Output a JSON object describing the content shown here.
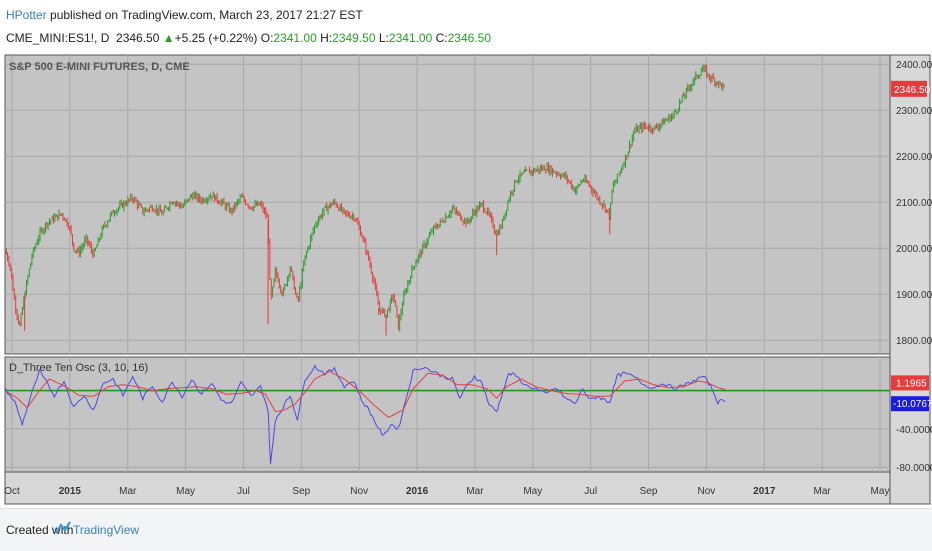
{
  "header": {
    "user": "HPotter",
    "published": "published on TradingView.com, March 23, 2017 21:27 EST"
  },
  "ticker": {
    "symbol": "CME_MINI:ES1!, D",
    "price": "2346.50",
    "change": "+5.25 (+0.22%)",
    "o_label": "O:",
    "o": "2341.00",
    "h_label": "H:",
    "h": "2349.50",
    "l_label": "L:",
    "l": "2341.00",
    "c_label": "C:",
    "c": "2346.50"
  },
  "footer": {
    "created": "Created with",
    "brand": "TradingView"
  },
  "colors": {
    "up": "#2e9a2e",
    "down": "#e8393c",
    "panel_bg": "#c4c4c4",
    "osc_fast": "#4a4ae0",
    "osc_slow": "#e04040",
    "zero_line": "#1a9c1a",
    "price_tag": "#e8393c",
    "osc_tag1": "#e8393c",
    "osc_tag2": "#1a1ae0"
  },
  "chart_data": [
    {
      "type": "candlestick",
      "title": "S&P 500 E-MINI FUTURES, D, CME",
      "ylim": [
        1770,
        2420
      ],
      "yticks": [
        1800,
        1900,
        2000,
        2100,
        2200,
        2300,
        2400
      ],
      "ytick_labels": [
        "1800.00",
        "1900.00",
        "2000.00",
        "2100.00",
        "2200.00",
        "2300.00",
        "2400.00"
      ],
      "last_price_label": "2346.50",
      "x_labels": [
        "Oct",
        "2015",
        "Mar",
        "May",
        "Jul",
        "Sep",
        "Nov",
        "2016",
        "Mar",
        "May",
        "Jul",
        "Sep",
        "Nov",
        "2017",
        "Mar",
        "May"
      ],
      "x_bold": [
        "2015",
        "2016",
        "2017"
      ],
      "grid": true,
      "close_path": [
        {
          "x": 0,
          "y": 1995
        },
        {
          "x": 2,
          "y": 1965
        },
        {
          "x": 4,
          "y": 1880
        },
        {
          "x": 6,
          "y": 1830
        },
        {
          "x": 8,
          "y": 1900
        },
        {
          "x": 11,
          "y": 1985
        },
        {
          "x": 14,
          "y": 2030
        },
        {
          "x": 17,
          "y": 2055
        },
        {
          "x": 20,
          "y": 2065
        },
        {
          "x": 23,
          "y": 2075
        },
        {
          "x": 26,
          "y": 2050
        },
        {
          "x": 28,
          "y": 2000
        },
        {
          "x": 30,
          "y": 1990
        },
        {
          "x": 33,
          "y": 2020
        },
        {
          "x": 36,
          "y": 1985
        },
        {
          "x": 40,
          "y": 2045
        },
        {
          "x": 44,
          "y": 2080
        },
        {
          "x": 48,
          "y": 2095
        },
        {
          "x": 52,
          "y": 2110
        },
        {
          "x": 56,
          "y": 2080
        },
        {
          "x": 60,
          "y": 2090
        },
        {
          "x": 64,
          "y": 2075
        },
        {
          "x": 68,
          "y": 2105
        },
        {
          "x": 72,
          "y": 2090
        },
        {
          "x": 76,
          "y": 2115
        },
        {
          "x": 80,
          "y": 2105
        },
        {
          "x": 84,
          "y": 2115
        },
        {
          "x": 88,
          "y": 2100
        },
        {
          "x": 92,
          "y": 2080
        },
        {
          "x": 96,
          "y": 2110
        },
        {
          "x": 100,
          "y": 2090
        },
        {
          "x": 104,
          "y": 2095
        },
        {
          "x": 107,
          "y": 2060
        },
        {
          "x": 108,
          "y": 1880
        },
        {
          "x": 110,
          "y": 1950
        },
        {
          "x": 113,
          "y": 1900
        },
        {
          "x": 116,
          "y": 1960
        },
        {
          "x": 119,
          "y": 1880
        },
        {
          "x": 122,
          "y": 1980
        },
        {
          "x": 126,
          "y": 2050
        },
        {
          "x": 130,
          "y": 2085
        },
        {
          "x": 134,
          "y": 2100
        },
        {
          "x": 138,
          "y": 2075
        },
        {
          "x": 142,
          "y": 2070
        },
        {
          "x": 145,
          "y": 2030
        },
        {
          "x": 147,
          "y": 1995
        },
        {
          "x": 150,
          "y": 1930
        },
        {
          "x": 152,
          "y": 1870
        },
        {
          "x": 155,
          "y": 1855
        },
        {
          "x": 158,
          "y": 1900
        },
        {
          "x": 160,
          "y": 1830
        },
        {
          "x": 162,
          "y": 1890
        },
        {
          "x": 166,
          "y": 1960
        },
        {
          "x": 170,
          "y": 2000
        },
        {
          "x": 174,
          "y": 2040
        },
        {
          "x": 178,
          "y": 2060
        },
        {
          "x": 182,
          "y": 2085
        },
        {
          "x": 185,
          "y": 2070
        },
        {
          "x": 188,
          "y": 2055
        },
        {
          "x": 191,
          "y": 2080
        },
        {
          "x": 194,
          "y": 2095
        },
        {
          "x": 197,
          "y": 2070
        },
        {
          "x": 200,
          "y": 2030
        },
        {
          "x": 202,
          "y": 2050
        },
        {
          "x": 205,
          "y": 2110
        },
        {
          "x": 208,
          "y": 2150
        },
        {
          "x": 212,
          "y": 2165
        },
        {
          "x": 216,
          "y": 2170
        },
        {
          "x": 220,
          "y": 2175
        },
        {
          "x": 224,
          "y": 2165
        },
        {
          "x": 228,
          "y": 2155
        },
        {
          "x": 232,
          "y": 2125
        },
        {
          "x": 235,
          "y": 2150
        },
        {
          "x": 238,
          "y": 2135
        },
        {
          "x": 241,
          "y": 2110
        },
        {
          "x": 244,
          "y": 2090
        },
        {
          "x": 246,
          "y": 2070
        },
        {
          "x": 247,
          "y": 2130
        },
        {
          "x": 250,
          "y": 2165
        },
        {
          "x": 253,
          "y": 2205
        },
        {
          "x": 256,
          "y": 2255
        },
        {
          "x": 260,
          "y": 2265
        },
        {
          "x": 264,
          "y": 2260
        },
        {
          "x": 268,
          "y": 2275
        },
        {
          "x": 272,
          "y": 2290
        },
        {
          "x": 276,
          "y": 2330
        },
        {
          "x": 280,
          "y": 2365
        },
        {
          "x": 284,
          "y": 2390
        },
        {
          "x": 286,
          "y": 2375
        },
        {
          "x": 290,
          "y": 2360
        },
        {
          "x": 293,
          "y": 2346
        }
      ],
      "spikes": [
        {
          "x": 8,
          "low": 1820
        },
        {
          "x": 107,
          "low": 1835
        },
        {
          "x": 155,
          "low": 1810
        },
        {
          "x": 200,
          "low": 1985
        },
        {
          "x": 246,
          "low": 2030
        },
        {
          "x": 152,
          "low": 1855
        }
      ]
    },
    {
      "type": "line",
      "title": "D_Three Ten Osc (3, 10, 16)",
      "ylim": [
        -85,
        35
      ],
      "yticks": [
        -40,
        -80
      ],
      "ytick_labels": [
        "-40.0000",
        "-80.0000"
      ],
      "value_labels": [
        "1.1965",
        "-10.0767"
      ],
      "series": [
        {
          "role": "fast",
          "points": [
            {
              "x": 0,
              "y": 2
            },
            {
              "x": 4,
              "y": -12
            },
            {
              "x": 7,
              "y": -35
            },
            {
              "x": 10,
              "y": -10
            },
            {
              "x": 14,
              "y": 20
            },
            {
              "x": 17,
              "y": 8
            },
            {
              "x": 20,
              "y": -5
            },
            {
              "x": 24,
              "y": 10
            },
            {
              "x": 28,
              "y": -18
            },
            {
              "x": 32,
              "y": -5
            },
            {
              "x": 36,
              "y": -20
            },
            {
              "x": 40,
              "y": 8
            },
            {
              "x": 44,
              "y": 12
            },
            {
              "x": 48,
              "y": -5
            },
            {
              "x": 52,
              "y": 15
            },
            {
              "x": 56,
              "y": -8
            },
            {
              "x": 60,
              "y": 5
            },
            {
              "x": 64,
              "y": -12
            },
            {
              "x": 68,
              "y": 10
            },
            {
              "x": 72,
              "y": -6
            },
            {
              "x": 76,
              "y": 12
            },
            {
              "x": 80,
              "y": -4
            },
            {
              "x": 84,
              "y": 8
            },
            {
              "x": 88,
              "y": -10
            },
            {
              "x": 92,
              "y": -14
            },
            {
              "x": 96,
              "y": 8
            },
            {
              "x": 100,
              "y": -6
            },
            {
              "x": 104,
              "y": 4
            },
            {
              "x": 107,
              "y": -20
            },
            {
              "x": 108,
              "y": -78
            },
            {
              "x": 110,
              "y": -30
            },
            {
              "x": 113,
              "y": -18
            },
            {
              "x": 116,
              "y": -5
            },
            {
              "x": 119,
              "y": -30
            },
            {
              "x": 122,
              "y": 12
            },
            {
              "x": 126,
              "y": 25
            },
            {
              "x": 130,
              "y": 18
            },
            {
              "x": 134,
              "y": 22
            },
            {
              "x": 138,
              "y": 5
            },
            {
              "x": 142,
              "y": 10
            },
            {
              "x": 145,
              "y": -10
            },
            {
              "x": 148,
              "y": -20
            },
            {
              "x": 151,
              "y": -35
            },
            {
              "x": 154,
              "y": -48
            },
            {
              "x": 157,
              "y": -35
            },
            {
              "x": 160,
              "y": -40
            },
            {
              "x": 163,
              "y": -10
            },
            {
              "x": 166,
              "y": 20
            },
            {
              "x": 170,
              "y": 25
            },
            {
              "x": 174,
              "y": 20
            },
            {
              "x": 178,
              "y": 15
            },
            {
              "x": 182,
              "y": 12
            },
            {
              "x": 185,
              "y": -8
            },
            {
              "x": 188,
              "y": 5
            },
            {
              "x": 191,
              "y": 15
            },
            {
              "x": 194,
              "y": 8
            },
            {
              "x": 197,
              "y": -15
            },
            {
              "x": 200,
              "y": -22
            },
            {
              "x": 202,
              "y": -5
            },
            {
              "x": 205,
              "y": 18
            },
            {
              "x": 208,
              "y": 15
            },
            {
              "x": 212,
              "y": 5
            },
            {
              "x": 216,
              "y": 2
            },
            {
              "x": 220,
              "y": -4
            },
            {
              "x": 224,
              "y": 3
            },
            {
              "x": 228,
              "y": -8
            },
            {
              "x": 232,
              "y": -14
            },
            {
              "x": 235,
              "y": 2
            },
            {
              "x": 238,
              "y": -10
            },
            {
              "x": 241,
              "y": -6
            },
            {
              "x": 244,
              "y": -10
            },
            {
              "x": 246,
              "y": -12
            },
            {
              "x": 249,
              "y": 15
            },
            {
              "x": 252,
              "y": 18
            },
            {
              "x": 256,
              "y": 14
            },
            {
              "x": 260,
              "y": 6
            },
            {
              "x": 264,
              "y": 3
            },
            {
              "x": 268,
              "y": 8
            },
            {
              "x": 272,
              "y": 2
            },
            {
              "x": 276,
              "y": 5
            },
            {
              "x": 280,
              "y": 10
            },
            {
              "x": 284,
              "y": 15
            },
            {
              "x": 287,
              "y": 5
            },
            {
              "x": 290,
              "y": -12
            },
            {
              "x": 293,
              "y": -10
            }
          ]
        },
        {
          "role": "slow",
          "points": [
            {
              "x": 0,
              "y": 0
            },
            {
              "x": 5,
              "y": -8
            },
            {
              "x": 9,
              "y": -18
            },
            {
              "x": 14,
              "y": 0
            },
            {
              "x": 18,
              "y": 12
            },
            {
              "x": 24,
              "y": 5
            },
            {
              "x": 30,
              "y": -5
            },
            {
              "x": 36,
              "y": -6
            },
            {
              "x": 42,
              "y": 4
            },
            {
              "x": 48,
              "y": 6
            },
            {
              "x": 54,
              "y": 4
            },
            {
              "x": 60,
              "y": 0
            },
            {
              "x": 66,
              "y": 2
            },
            {
              "x": 72,
              "y": 3
            },
            {
              "x": 78,
              "y": 4
            },
            {
              "x": 84,
              "y": 2
            },
            {
              "x": 90,
              "y": -4
            },
            {
              "x": 96,
              "y": -3
            },
            {
              "x": 102,
              "y": 0
            },
            {
              "x": 106,
              "y": -4
            },
            {
              "x": 110,
              "y": -22
            },
            {
              "x": 114,
              "y": -20
            },
            {
              "x": 118,
              "y": -14
            },
            {
              "x": 122,
              "y": -2
            },
            {
              "x": 126,
              "y": 12
            },
            {
              "x": 132,
              "y": 20
            },
            {
              "x": 138,
              "y": 12
            },
            {
              "x": 144,
              "y": 0
            },
            {
              "x": 150,
              "y": -15
            },
            {
              "x": 156,
              "y": -28
            },
            {
              "x": 162,
              "y": -20
            },
            {
              "x": 166,
              "y": 2
            },
            {
              "x": 172,
              "y": 18
            },
            {
              "x": 178,
              "y": 16
            },
            {
              "x": 184,
              "y": 6
            },
            {
              "x": 190,
              "y": 6
            },
            {
              "x": 196,
              "y": 2
            },
            {
              "x": 200,
              "y": -8
            },
            {
              "x": 204,
              "y": 4
            },
            {
              "x": 210,
              "y": 12
            },
            {
              "x": 216,
              "y": 4
            },
            {
              "x": 222,
              "y": 0
            },
            {
              "x": 228,
              "y": -3
            },
            {
              "x": 234,
              "y": -4
            },
            {
              "x": 240,
              "y": -6
            },
            {
              "x": 246,
              "y": -6
            },
            {
              "x": 252,
              "y": 10
            },
            {
              "x": 258,
              "y": 12
            },
            {
              "x": 264,
              "y": 6
            },
            {
              "x": 270,
              "y": 3
            },
            {
              "x": 276,
              "y": 4
            },
            {
              "x": 282,
              "y": 10
            },
            {
              "x": 286,
              "y": 8
            },
            {
              "x": 290,
              "y": 3
            },
            {
              "x": 293,
              "y": 1
            }
          ]
        }
      ]
    }
  ]
}
